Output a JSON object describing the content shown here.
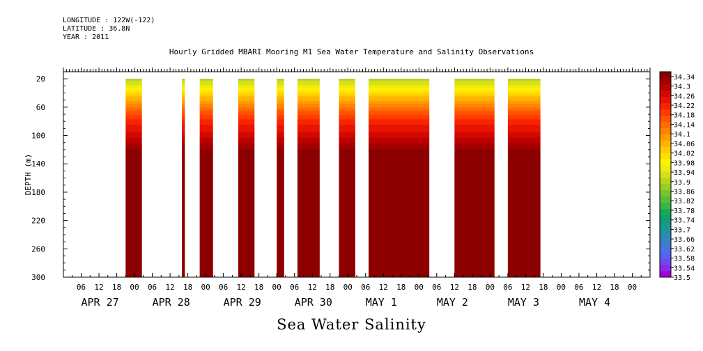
{
  "header": {
    "longitude": "LONGITUDE : 122W(-122)",
    "latitude": "LATITUDE : 36.8N",
    "year": "YEAR : 2011"
  },
  "chart_data": {
    "type": "heatmap",
    "title": "Hourly Gridded MBARI Mooring M1 Sea Water Temperature and Salinity Observations",
    "footer_title": "Sea Water Salinity",
    "ylabel": "DEPTH (m)",
    "ylim": [
      300,
      10
    ],
    "y_ticks": [
      20,
      60,
      100,
      140,
      180,
      220,
      260,
      300
    ],
    "xlim_hours": [
      0,
      198
    ],
    "x_hour_ticks": [
      {
        "h": 6,
        "label": "06"
      },
      {
        "h": 12,
        "label": "12"
      },
      {
        "h": 18,
        "label": "18"
      },
      {
        "h": 24,
        "label": "00"
      },
      {
        "h": 30,
        "label": "06"
      },
      {
        "h": 36,
        "label": "12"
      },
      {
        "h": 42,
        "label": "18"
      },
      {
        "h": 48,
        "label": "00"
      },
      {
        "h": 54,
        "label": "06"
      },
      {
        "h": 60,
        "label": "12"
      },
      {
        "h": 66,
        "label": "18"
      },
      {
        "h": 72,
        "label": "00"
      },
      {
        "h": 78,
        "label": "06"
      },
      {
        "h": 84,
        "label": "12"
      },
      {
        "h": 90,
        "label": "18"
      },
      {
        "h": 96,
        "label": "00"
      },
      {
        "h": 102,
        "label": "06"
      },
      {
        "h": 108,
        "label": "12"
      },
      {
        "h": 114,
        "label": "18"
      },
      {
        "h": 120,
        "label": "00"
      },
      {
        "h": 126,
        "label": "06"
      },
      {
        "h": 132,
        "label": "12"
      },
      {
        "h": 138,
        "label": "18"
      },
      {
        "h": 144,
        "label": "00"
      },
      {
        "h": 150,
        "label": "06"
      },
      {
        "h": 156,
        "label": "12"
      },
      {
        "h": 162,
        "label": "18"
      },
      {
        "h": 168,
        "label": "00"
      },
      {
        "h": 174,
        "label": "06"
      },
      {
        "h": 180,
        "label": "12"
      },
      {
        "h": 186,
        "label": "18"
      },
      {
        "h": 192,
        "label": "00"
      }
    ],
    "x_day_labels": [
      {
        "h": 6,
        "label": "APR 27"
      },
      {
        "h": 30,
        "label": "APR 28"
      },
      {
        "h": 54,
        "label": "APR 29"
      },
      {
        "h": 78,
        "label": "APR 30"
      },
      {
        "h": 102,
        "label": "MAY  1"
      },
      {
        "h": 126,
        "label": "MAY  2"
      },
      {
        "h": 150,
        "label": "MAY  3"
      },
      {
        "h": 174,
        "label": "MAY  4"
      }
    ],
    "data_segments": [
      {
        "start": 21,
        "end": 26.5
      },
      {
        "start": 40,
        "end": 41
      },
      {
        "start": 46,
        "end": 50.5
      },
      {
        "start": 59,
        "end": 64.5
      },
      {
        "start": 72,
        "end": 74.5
      },
      {
        "start": 79,
        "end": 86.5
      },
      {
        "start": 93,
        "end": 98.5
      },
      {
        "start": 103,
        "end": 123.5
      },
      {
        "start": 132,
        "end": 145.5
      },
      {
        "start": 150,
        "end": 161
      }
    ],
    "depth_profile": [
      {
        "depth": 20,
        "value": 33.8
      },
      {
        "depth": 40,
        "value": 33.9
      },
      {
        "depth": 60,
        "value": 33.98
      },
      {
        "depth": 80,
        "value": 34.05
      },
      {
        "depth": 100,
        "value": 34.09
      },
      {
        "depth": 120,
        "value": 34.14
      },
      {
        "depth": 140,
        "value": 34.17
      },
      {
        "depth": 160,
        "value": 34.18
      },
      {
        "depth": 180,
        "value": 34.18
      },
      {
        "depth": 200,
        "value": 34.2
      },
      {
        "depth": 220,
        "value": 34.24
      },
      {
        "depth": 240,
        "value": 34.28
      },
      {
        "depth": 260,
        "value": 34.31
      },
      {
        "depth": 280,
        "value": 34.28
      },
      {
        "depth": 300,
        "value": 34.25
      }
    ],
    "colorbar": {
      "min": 33.5,
      "max": 34.36,
      "step": 0.02,
      "tick_labels": [
        "34.34",
        "34.3",
        "34.26",
        "34.22",
        "34.18",
        "34.14",
        "34.1",
        "34.06",
        "34.02",
        "33.98",
        "33.94",
        "33.9",
        "33.86",
        "33.82",
        "33.78",
        "33.74",
        "33.7",
        "33.66",
        "33.62",
        "33.58",
        "33.54",
        "33.5"
      ],
      "colors": [
        "#a000e0",
        "#8a28ec",
        "#7048f0",
        "#5860f0",
        "#4872e0",
        "#3c7ecc",
        "#2e88b8",
        "#2290a0",
        "#189888",
        "#10a070",
        "#1aa858",
        "#38b448",
        "#58bc3c",
        "#78c430",
        "#98cc26",
        "#b8d41e",
        "#d8e018",
        "#f0ec10",
        "#fff200",
        "#ffe000",
        "#ffcc00",
        "#ffb400",
        "#ff9c00",
        "#ff8400",
        "#ff6c00",
        "#ff5400",
        "#ff3c00",
        "#f82400",
        "#e81400",
        "#d40800",
        "#bc0000",
        "#a40000",
        "#8c0000"
      ]
    }
  }
}
